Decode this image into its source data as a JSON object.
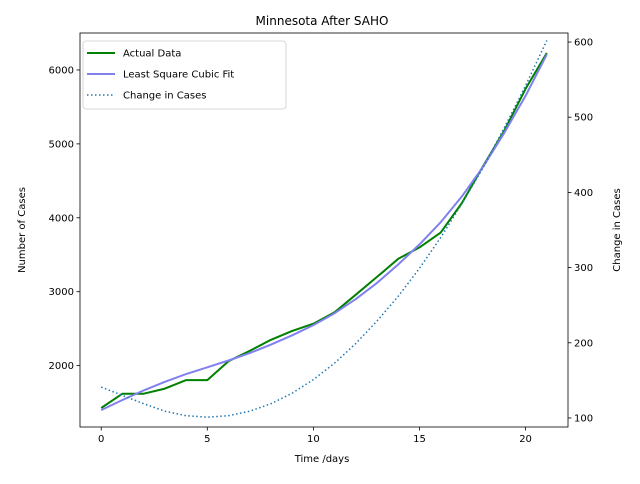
{
  "chart_data": {
    "type": "line",
    "title": "Minnesota After SAHO",
    "xlabel": "Time /days",
    "ylabel": "Number of Cases",
    "ylabel_right": "Change in Cases",
    "xlim": [
      -1,
      22
    ],
    "ylim": [
      1170,
      6500
    ],
    "ylim_right": [
      88,
      612
    ],
    "x_ticks": [
      0,
      5,
      10,
      15,
      20
    ],
    "y_ticks": [
      2000,
      3000,
      4000,
      5000,
      6000
    ],
    "y_ticks_right": [
      100,
      200,
      300,
      400,
      500,
      600
    ],
    "x": [
      0,
      1,
      2,
      3,
      4,
      5,
      6,
      7,
      8,
      9,
      10,
      11,
      12,
      13,
      14,
      15,
      16,
      17,
      18,
      19,
      20,
      21
    ],
    "legend_position": "upper-left",
    "grid": false,
    "series": [
      {
        "name": "Actual Data",
        "axis": "left",
        "color": "#008000",
        "style": "solid",
        "values": [
          1427,
          1620,
          1620,
          1690,
          1805,
          1805,
          2060,
          2200,
          2350,
          2470,
          2567,
          2721,
          2960,
          3200,
          3446,
          3600,
          3800,
          4200,
          4700,
          5180,
          5745,
          6230
        ]
      },
      {
        "name": "Least Square Cubic Fit",
        "axis": "left",
        "color": "#8080f0",
        "style": "solid",
        "values": [
          1398,
          1535,
          1665,
          1782,
          1885,
          1978,
          2070,
          2170,
          2285,
          2410,
          2548,
          2710,
          2900,
          3120,
          3370,
          3640,
          3940,
          4290,
          4690,
          5150,
          5650,
          6210
        ]
      },
      {
        "name": "Change in Cases",
        "axis": "right",
        "color": "#1f77b4",
        "style": "dotted",
        "values": [
          141,
          130,
          119,
          109,
          103,
          101,
          103,
          109,
          119,
          133,
          151,
          173,
          199,
          229,
          262,
          299,
          340,
          385,
          433,
          486,
          542,
          602
        ]
      }
    ]
  }
}
